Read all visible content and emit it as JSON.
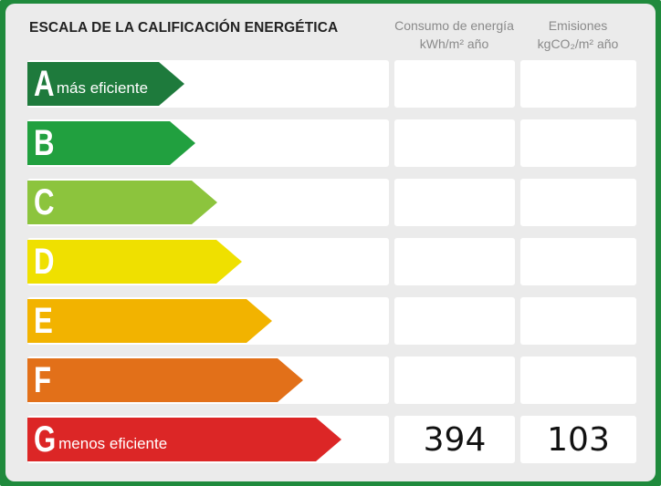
{
  "title": "ESCALA DE LA CALIFICACIÓN ENERGÉTICA",
  "columns": {
    "consumo": {
      "line1": "Consumo de energía",
      "line2": "kWh/m² año"
    },
    "emisiones": {
      "line1": "Emisiones",
      "line2": "kgCO₂/m² año"
    }
  },
  "ratings": [
    {
      "letter": "A",
      "label": "más eficiente",
      "color": "#1e7a3c"
    },
    {
      "letter": "B",
      "label": "",
      "color": "#21a03f"
    },
    {
      "letter": "C",
      "label": "",
      "color": "#8cc43d"
    },
    {
      "letter": "D",
      "label": "",
      "color": "#efe000"
    },
    {
      "letter": "E",
      "label": "",
      "color": "#f2b300"
    },
    {
      "letter": "F",
      "label": "",
      "color": "#e27019"
    },
    {
      "letter": "G",
      "label": "menos eficiente",
      "color": "#dc2626"
    }
  ],
  "current": {
    "rating": "G",
    "consumo": "394",
    "emisiones": "103"
  }
}
